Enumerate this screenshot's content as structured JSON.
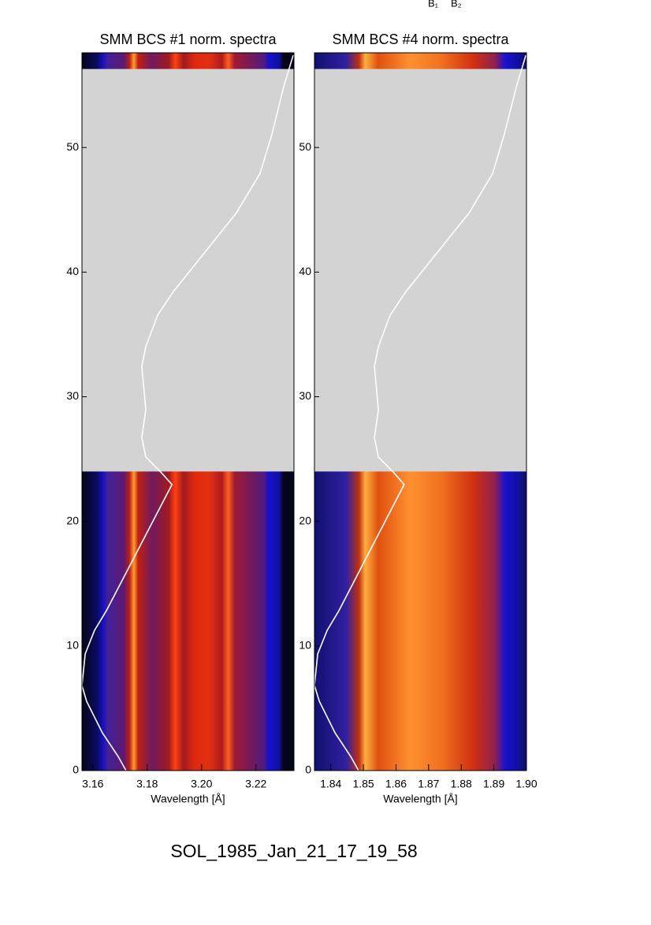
{
  "chart_data": [
    {
      "type": "spectrogram",
      "title": "SMM BCS #1 norm. spectra",
      "xlabel": "Wavelength [Å]",
      "xlim": [
        3.156,
        3.234
      ],
      "xticks": [
        3.16,
        3.18,
        {
          "value": 3.2,
          "label": "3.20"
        },
        3.22
      ],
      "ylim": [
        0,
        57.6
      ],
      "yticks": [
        0,
        10,
        20,
        30,
        40,
        50
      ],
      "spectra_y": [
        [
          0,
          24
        ],
        [
          56.3,
          57.6
        ]
      ],
      "background": "#d3d3d3",
      "curve": {
        "color": "#ffffff",
        "x": [
          3.1722,
          3.1693,
          3.1635,
          3.1577,
          3.156,
          3.1572,
          3.1606,
          3.165,
          3.1891,
          3.1853,
          3.1795,
          3.178,
          3.1795,
          3.178,
          3.1795,
          3.1838,
          3.1896,
          3.2012,
          3.2128,
          3.2215,
          3.2259,
          3.2302,
          3.2337
        ],
        "y": [
          0,
          1.14,
          3.03,
          5.56,
          6.83,
          9.36,
          11.25,
          12.83,
          22.95,
          23.89,
          25.16,
          26.74,
          28.95,
          32.43,
          34.01,
          36.54,
          38.43,
          41.59,
          44.75,
          47.91,
          51.07,
          54.87,
          57.4
        ]
      }
    },
    {
      "type": "spectrogram",
      "title": "SMM BCS #4 norm. spectra",
      "xlabel": "Wavelength [Å]",
      "xlim": [
        1.835,
        1.9
      ],
      "xticks": [
        1.84,
        1.85,
        1.86,
        1.87,
        1.88,
        1.89,
        {
          "value": 1.9,
          "label": "1.90"
        }
      ],
      "ylim": [
        0,
        57.6
      ],
      "yticks": [
        0,
        10,
        20,
        30,
        40,
        50
      ],
      "spectra_y": [
        [
          0,
          24
        ],
        [
          56.3,
          57.6
        ]
      ],
      "background": "#d3d3d3",
      "curve": {
        "color": "#ffffff",
        "x": [
          1.8485,
          1.8461,
          1.8413,
          1.8365,
          1.835,
          1.836,
          1.8389,
          1.8425,
          1.8625,
          1.8594,
          1.8546,
          1.8534,
          1.8546,
          1.8534,
          1.8546,
          1.8582,
          1.863,
          1.8727,
          1.8824,
          1.8896,
          1.8932,
          1.8969,
          1.8998
        ],
        "y": [
          0,
          1.14,
          3.03,
          5.56,
          6.83,
          9.36,
          11.25,
          12.83,
          22.95,
          23.89,
          25.16,
          26.74,
          28.95,
          32.43,
          34.01,
          36.54,
          38.43,
          41.59,
          44.75,
          47.91,
          51.07,
          54.87,
          57.4
        ]
      }
    }
  ],
  "annotations": [
    "B₁",
    "B₂"
  ],
  "caption": "SOL_1985_Jan_21_17_19_58"
}
